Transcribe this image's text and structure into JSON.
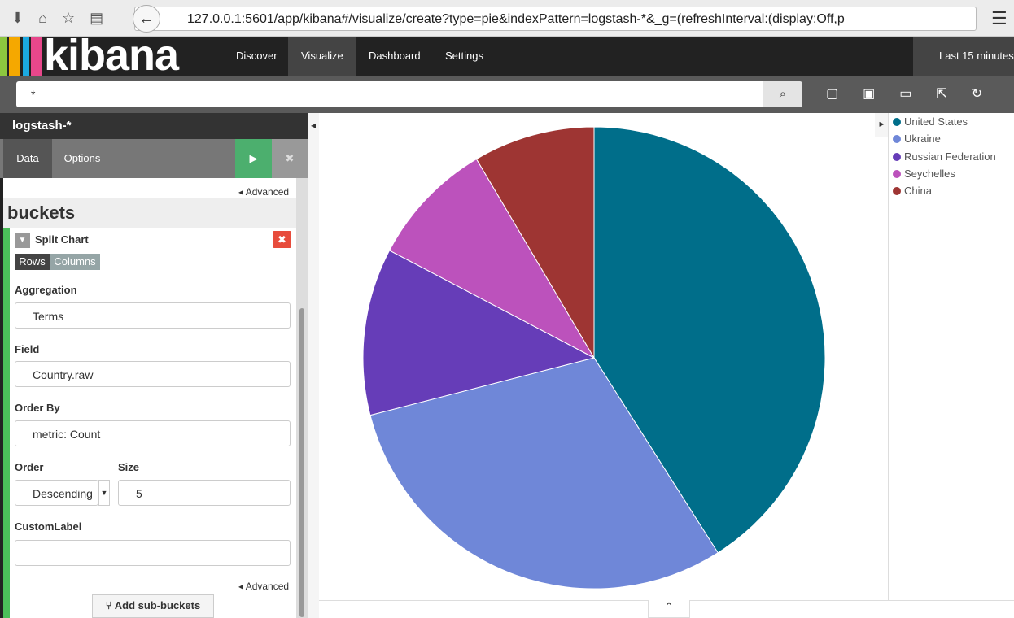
{
  "browser": {
    "url": "127.0.0.1:5601/app/kibana#/visualize/create?type=pie&indexPattern=logstash-*&_g=(refreshInterval:(display:Off,p"
  },
  "nav": {
    "brand": "kibana",
    "items": [
      "Discover",
      "Visualize",
      "Dashboard",
      "Settings"
    ],
    "time": "Last 15 minutes"
  },
  "search": {
    "query": "*"
  },
  "sidebar": {
    "index": "logstash-*",
    "tabs": [
      "Data",
      "Options"
    ],
    "advanced": "Advanced",
    "section": "buckets",
    "bucket": "Split Chart",
    "toggle": [
      "Rows",
      "Columns"
    ],
    "aggregation_label": "Aggregation",
    "aggregation": "Terms",
    "field_label": "Field",
    "field": "Country.raw",
    "order_by_label": "Order By",
    "order_by": "metric: Count",
    "order_label": "Order",
    "order": "Descending",
    "size_label": "Size",
    "size": "5",
    "custom_label": "CustomLabel",
    "advanced_bottom": "Advanced",
    "add": "Add sub-buckets"
  },
  "chart_data": {
    "type": "pie",
    "categories": [
      "United States",
      "Ukraine",
      "Russian Federation",
      "Seychelles",
      "China"
    ],
    "values": [
      41,
      30,
      11.7,
      8.8,
      8.5
    ],
    "colors": [
      "#006e8a",
      "#6f87d8",
      "#663db8",
      "#bc52bc",
      "#9e3533"
    ]
  }
}
